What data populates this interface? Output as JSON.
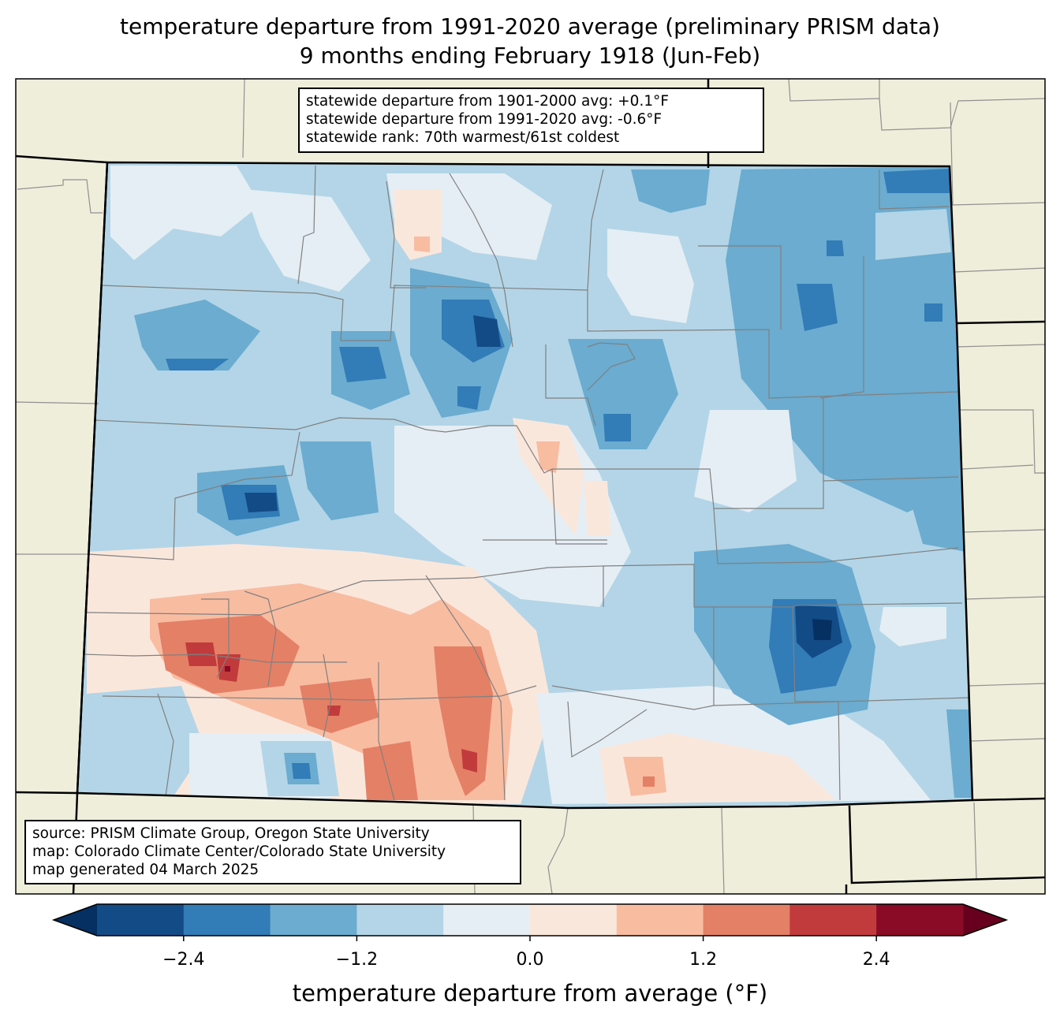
{
  "title": {
    "line1": "temperature departure from 1991-2020 average (preliminary PRISM data)",
    "line2": "9 months ending February 1918 (Jun-Feb)"
  },
  "stats_box": {
    "line1": "statewide departure from 1901-2000 avg: +0.1°F",
    "line2": "statewide departure from 1991-2020 avg: -0.6°F",
    "line3": "statewide rank: 70th warmest/61st coldest"
  },
  "source_box": {
    "line1": "source: PRISM Climate Group, Oregon State University",
    "line2": "map: Colorado Climate Center/Colorado State University",
    "line3": "map generated 04 March 2025"
  },
  "colorbar": {
    "label": "temperature departure from average (°F)",
    "boundaries": [
      -3.0,
      -2.4,
      -1.8,
      -1.2,
      -0.6,
      0.0,
      0.6,
      1.2,
      1.8,
      2.4,
      3.0
    ],
    "ticks": [
      {
        "value": -2.4,
        "label": "−2.4"
      },
      {
        "value": -1.2,
        "label": "−1.2"
      },
      {
        "value": 0.0,
        "label": "0.0"
      },
      {
        "value": 1.2,
        "label": "1.2"
      },
      {
        "value": 2.4,
        "label": "2.4"
      }
    ],
    "under_color": "#053061",
    "over_color": "#67001f",
    "colors": [
      "#134b87",
      "#327cb7",
      "#6bacd0",
      "#b3d5e7",
      "#e5eef4",
      "#fae7dc",
      "#f8bca1",
      "#e48066",
      "#c13b3c",
      "#8a0b25"
    ]
  },
  "map_colors": {
    "land_background": "#efeedb",
    "state_border": "#000000",
    "county_border": "#808080"
  }
}
